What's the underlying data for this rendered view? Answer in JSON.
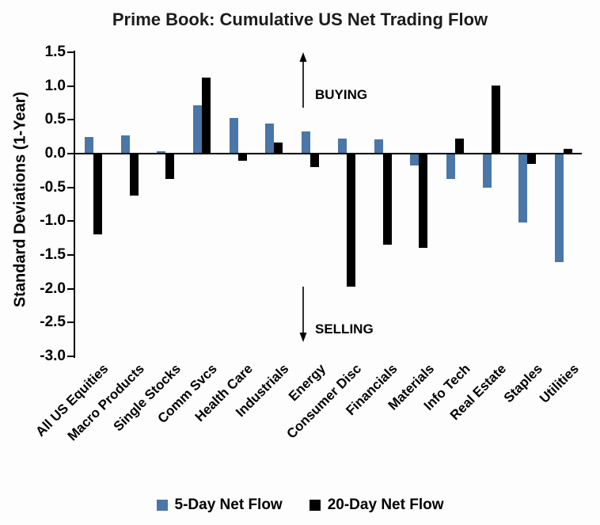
{
  "chart_data": {
    "type": "bar",
    "title": "Prime Book: Cumulative US Net Trading Flow",
    "xlabel": "",
    "ylabel": "Standard Deviations (1-Year)",
    "ylim": [
      -3.0,
      1.5
    ],
    "ytick_step": 0.5,
    "grid": false,
    "legend_position": "bottom",
    "categories": [
      "All US Equities",
      "Macro Products",
      "Single Stocks",
      "Comm Svcs",
      "Health Care",
      "Industrials",
      "Energy",
      "Consumer Disc",
      "Financials",
      "Materials",
      "Info Tech",
      "Real Estate",
      "Staples",
      "Utilities"
    ],
    "series": [
      {
        "name": "5-Day Net Flow",
        "color": "#4a76a8",
        "values": [
          0.25,
          0.27,
          0.04,
          0.72,
          0.53,
          0.45,
          0.33,
          0.22,
          0.21,
          -0.17,
          -0.37,
          -0.5,
          -1.02,
          -1.6
        ]
      },
      {
        "name": "20-Day Net Flow",
        "color": "#000000",
        "values": [
          -1.2,
          -0.62,
          -0.38,
          1.13,
          -0.1,
          0.16,
          -0.2,
          -1.97,
          -1.35,
          -1.4,
          0.22,
          1.01,
          -0.15,
          0.07
        ]
      }
    ],
    "annotations": [
      {
        "text": "BUYING",
        "direction": "up"
      },
      {
        "text": "SELLING",
        "direction": "down"
      }
    ]
  }
}
